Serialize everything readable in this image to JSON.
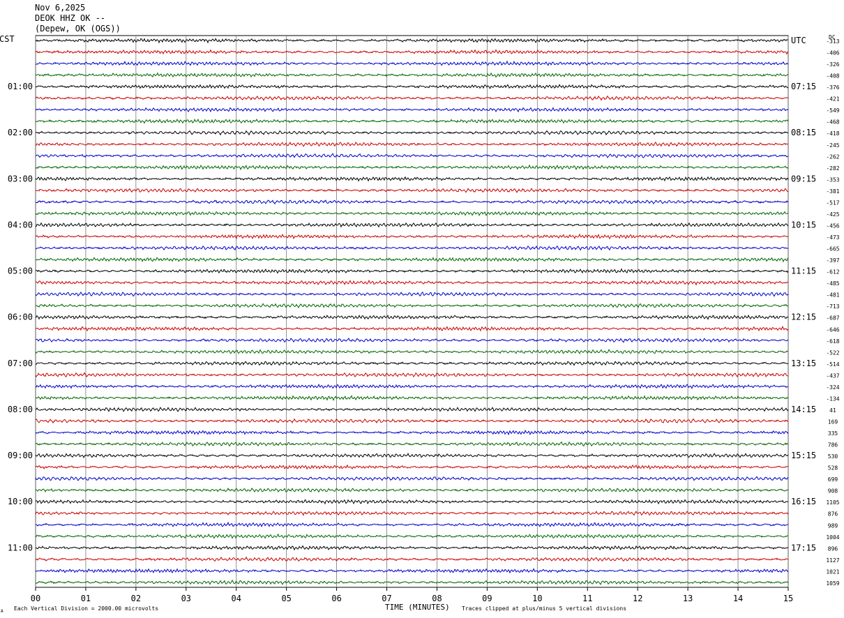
{
  "header": {
    "date": "Nov 6,2025",
    "station": "DEOK HHZ OK --",
    "location": "(Depew,  OK (OGS))"
  },
  "labels": {
    "left_tz": "CST",
    "right_tz": "UTC",
    "dc": "DC",
    "footer_left": "Each Vertical Division = 2000.00 microvolts",
    "footer_right": "Traces clipped at plus/minus 5 vertical divisions",
    "corner_mark": "A"
  },
  "chart_data": {
    "type": "line",
    "title": "",
    "xlabel": "TIME (MINUTES)",
    "ylabel": "",
    "xlim": [
      0,
      15
    ],
    "x_ticks": [
      "00",
      "01",
      "02",
      "03",
      "04",
      "05",
      "06",
      "07",
      "08",
      "09",
      "10",
      "11",
      "12",
      "13",
      "14",
      "15"
    ],
    "grid": true,
    "trace_colors": [
      "#000000",
      "#cc0000",
      "#0000cc",
      "#006600"
    ],
    "rows_per_hour": 4,
    "left_hour_labels": [
      "",
      "01:00",
      "02:00",
      "03:00",
      "04:00",
      "05:00",
      "06:00",
      "07:00",
      "08:00",
      "09:00",
      "10:00",
      "11:00"
    ],
    "right_hour_labels": [
      "UTC",
      "07:15",
      "08:15",
      "09:15",
      "10:15",
      "11:15",
      "12:15",
      "13:15",
      "14:15",
      "15:15",
      "16:15",
      "17:15"
    ],
    "dc_offsets": [
      -313,
      -406,
      -326,
      -408,
      -376,
      -421,
      -549,
      -468,
      -418,
      -245,
      -262,
      -282,
      -353,
      -381,
      -517,
      -425,
      -456,
      -473,
      -665,
      -397,
      -612,
      -485,
      -481,
      -713,
      -687,
      -646,
      -618,
      -522,
      -514,
      -437,
      -324,
      -134,
      41,
      169,
      335,
      786,
      530,
      528,
      699,
      908,
      1105,
      876,
      989,
      1004,
      896,
      1127,
      1021,
      1059
    ]
  }
}
